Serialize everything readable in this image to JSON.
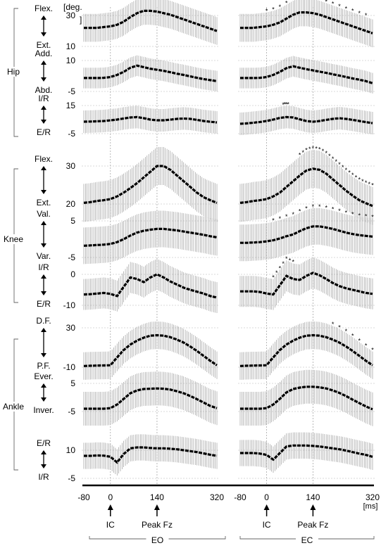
{
  "groups": [
    {
      "label": "Hip"
    },
    {
      "label": "Knee"
    },
    {
      "label": "Ankle"
    }
  ],
  "unit_label": "[deg.",
  "unit_bracket": "]",
  "x_unit_label": "[ms]",
  "x_ticks": [
    "-80",
    "0",
    "140",
    "320"
  ],
  "events": [
    "IC",
    "Peak Fz"
  ],
  "conditions": [
    "EO",
    "EC"
  ],
  "rows": [
    {
      "group": "Hip",
      "top_label": "Flex.",
      "bottom_label": "Ext.",
      "y_ticks": [
        "30",
        "10"
      ]
    },
    {
      "group": "Hip",
      "top_label": "Add.",
      "bottom_label": "Abd.",
      "y_ticks": [
        "10",
        "-5"
      ]
    },
    {
      "group": "Hip",
      "top_label": "I/R",
      "bottom_label": "E/R",
      "y_ticks": [
        "15",
        "-5"
      ]
    },
    {
      "group": "Knee",
      "top_label": "Flex.",
      "bottom_label": "Ext.",
      "y_ticks": [
        "30",
        "20"
      ]
    },
    {
      "group": "Knee",
      "top_label": "Val.",
      "bottom_label": "Var.",
      "y_ticks": [
        "5",
        "-5"
      ]
    },
    {
      "group": "Knee",
      "top_label": "I/R",
      "bottom_label": "E/R",
      "y_ticks": [
        "0",
        "-10"
      ]
    },
    {
      "group": "Ankle",
      "top_label": "D.F.",
      "bottom_label": "P.F.",
      "y_ticks": [
        "30",
        "-10"
      ]
    },
    {
      "group": "Ankle",
      "top_label": "Ever.",
      "bottom_label": "Inver.",
      "y_ticks": [
        "5",
        "-5"
      ]
    },
    {
      "group": "Ankle",
      "top_label": "E/R",
      "bottom_label": "I/R",
      "y_ticks": [
        "10",
        "-5"
      ]
    }
  ],
  "chart_data": {
    "type": "line",
    "x_range": [
      -80,
      320
    ],
    "x": [
      -80,
      -60,
      -40,
      -20,
      0,
      20,
      40,
      60,
      80,
      100,
      120,
      140,
      160,
      180,
      200,
      220,
      240,
      260,
      280,
      300,
      320
    ],
    "panels": [
      {
        "row": 0,
        "condition": "EO",
        "y_range": [
          10,
          30
        ],
        "mean": [
          22,
          22,
          22,
          22.5,
          23,
          24,
          26,
          29,
          31.5,
          33,
          33,
          32.5,
          31.5,
          30.5,
          29,
          27.5,
          26,
          24.5,
          23,
          21.5,
          20
        ],
        "sd": 9
      },
      {
        "row": 0,
        "condition": "EC",
        "y_range": [
          10,
          30
        ],
        "mean": [
          22,
          22,
          22,
          22.5,
          23,
          24,
          25.5,
          28,
          30.5,
          32,
          32,
          31.5,
          30.5,
          29,
          27.5,
          26,
          24.5,
          23,
          21.5,
          20,
          18.5
        ],
        "sd": 9,
        "significant_x": [
          0,
          20,
          40,
          60,
          80,
          100,
          120,
          140,
          160,
          180,
          200,
          220,
          240,
          260,
          280,
          300
        ]
      },
      {
        "row": 1,
        "condition": "EO",
        "y_range": [
          -5,
          10
        ],
        "mean": [
          1.5,
          1.5,
          1.5,
          1.6,
          2,
          3,
          4.5,
          6.5,
          7.5,
          6.8,
          6,
          5.5,
          5,
          4.3,
          3.6,
          3,
          2.3,
          1.6,
          1,
          0.5,
          0
        ],
        "sd": 5
      },
      {
        "row": 1,
        "condition": "EC",
        "y_range": [
          -5,
          10
        ],
        "mean": [
          1.5,
          1.5,
          1.5,
          1.6,
          2,
          3,
          4.5,
          6.3,
          7.2,
          6.5,
          5.8,
          5.2,
          4.6,
          4,
          3.3,
          2.7,
          2,
          1.3,
          0.7,
          0,
          -1
        ],
        "sd": 5
      },
      {
        "row": 2,
        "condition": "EO",
        "y_range": [
          -5,
          15
        ],
        "mean": [
          3.5,
          3.6,
          3.8,
          4,
          4.5,
          5,
          5.8,
          6.5,
          6.8,
          6,
          5,
          4.5,
          4.5,
          5,
          5.5,
          5.8,
          5.5,
          4.8,
          4,
          3.5,
          3
        ],
        "sd": 8
      },
      {
        "row": 2,
        "condition": "EC",
        "y_range": [
          -5,
          15
        ],
        "mean": [
          2,
          2.3,
          2.8,
          3.3,
          4,
          5,
          6.2,
          6.8,
          6.5,
          5.2,
          4,
          3.5,
          4,
          4.8,
          5.5,
          6,
          5.5,
          4.8,
          4,
          3.2,
          2.5
        ],
        "sd": 8,
        "significant_x": [
          50,
          55,
          60,
          65
        ]
      },
      {
        "row": 3,
        "condition": "EO",
        "y_range": [
          20,
          30
        ],
        "mean": [
          20.3,
          20.5,
          20.8,
          21,
          21.3,
          22,
          23,
          24.2,
          25.5,
          27,
          28.5,
          30,
          30,
          29,
          27.5,
          26,
          24.5,
          23,
          21.8,
          21,
          20.3
        ],
        "sd": 5
      },
      {
        "row": 3,
        "condition": "EC",
        "y_range": [
          20,
          30
        ],
        "mean": [
          20.3,
          20.5,
          20.8,
          21,
          21.3,
          22,
          23,
          24.5,
          26,
          27.5,
          28.8,
          29.3,
          29,
          28,
          26.5,
          25,
          23.5,
          22.2,
          21,
          20.2,
          19.5
        ],
        "sd": 5,
        "significant_x": [
          100,
          110,
          120,
          130,
          140,
          150,
          160,
          170,
          180,
          190,
          200,
          210,
          220,
          230,
          240,
          250,
          260,
          270,
          280,
          290,
          300,
          310,
          320
        ]
      },
      {
        "row": 4,
        "condition": "EO",
        "y_range": [
          -5,
          5
        ],
        "mean": [
          -1.8,
          -1.7,
          -1.6,
          -1.5,
          -1.3,
          -0.8,
          0,
          1,
          1.8,
          2.3,
          2.6,
          2.8,
          2.8,
          2.6,
          2.4,
          2.1,
          1.8,
          1.5,
          1.2,
          0.8,
          0.5
        ],
        "sd": 5
      },
      {
        "row": 4,
        "condition": "EC",
        "y_range": [
          -5,
          5
        ],
        "mean": [
          -1,
          -1,
          -0.9,
          -0.8,
          -0.6,
          -0.3,
          0.2,
          0.8,
          1.3,
          2.2,
          3,
          3.5,
          3.5,
          3.2,
          2.8,
          2.3,
          1.8,
          1.4,
          1.1,
          0.9,
          0.7
        ],
        "sd": 5,
        "significant_x": [
          20,
          40,
          60,
          80,
          100,
          120,
          140,
          160,
          180,
          200,
          220,
          240,
          260,
          280,
          300,
          320
        ]
      },
      {
        "row": 5,
        "condition": "EO",
        "y_range": [
          -10,
          0
        ],
        "mean": [
          -6.5,
          -6.4,
          -6.2,
          -6,
          -6.3,
          -7,
          -4,
          -1,
          -1.5,
          -2.5,
          -1,
          0,
          -1,
          -2.3,
          -3.3,
          -4.3,
          -5,
          -5.6,
          -6.2,
          -7,
          -7.5
        ],
        "sd": 5
      },
      {
        "row": 5,
        "condition": "EC",
        "y_range": [
          -10,
          0
        ],
        "mean": [
          -5.5,
          -5.5,
          -5.5,
          -5.7,
          -6.2,
          -6.5,
          -3.5,
          -0.5,
          -1.5,
          -1.8,
          -0.5,
          0.5,
          -0.3,
          -1.5,
          -2.8,
          -3.8,
          -4.5,
          -5,
          -5.5,
          -6,
          -6.3
        ],
        "sd": 5,
        "significant_x": [
          20,
          30,
          40,
          50,
          60,
          70,
          80
        ]
      },
      {
        "row": 6,
        "condition": "EO",
        "y_range": [
          -10,
          30
        ],
        "mean": [
          -8.8,
          -8.5,
          -8.3,
          -8.2,
          -8,
          0,
          7.5,
          13,
          17,
          20,
          22,
          22.5,
          22,
          20.5,
          18,
          15,
          11,
          6.5,
          1.5,
          -3.5,
          -8
        ],
        "sd": 14
      },
      {
        "row": 6,
        "condition": "EC",
        "y_range": [
          -10,
          30
        ],
        "mean": [
          -8.8,
          -8.5,
          -8.3,
          -8.2,
          -8,
          0,
          7.5,
          13,
          17,
          20,
          22,
          22.5,
          22,
          20.5,
          18,
          15,
          11,
          6.5,
          1.5,
          -3.5,
          -8
        ],
        "sd": 14,
        "significant_x": [
          200,
          220,
          240,
          260,
          280,
          300,
          320
        ]
      },
      {
        "row": 7,
        "condition": "EO",
        "y_range": [
          -5,
          5
        ],
        "mean": [
          -4,
          -4,
          -4,
          -4,
          -3.8,
          -2.5,
          -0.5,
          1.5,
          2.5,
          3,
          3.1,
          3.2,
          3.1,
          2.8,
          2.2,
          1.5,
          0.5,
          -0.6,
          -1.8,
          -3,
          -3.8
        ],
        "sd": 6
      },
      {
        "row": 7,
        "condition": "EC",
        "y_range": [
          -5,
          5
        ],
        "mean": [
          -4,
          -4,
          -4,
          -4,
          -3.8,
          -2.5,
          -0.5,
          1.8,
          3,
          3.5,
          3.8,
          3.8,
          3.6,
          3.2,
          2.5,
          1.6,
          0.5,
          -0.8,
          -2,
          -3.2,
          -4.2
        ],
        "sd": 6
      },
      {
        "row": 8,
        "condition": "EO",
        "y_range": [
          -5,
          10
        ],
        "mean": [
          7,
          7,
          7.2,
          7.1,
          6.5,
          3.5,
          8,
          11,
          11.5,
          11.5,
          11.2,
          11,
          11,
          10.8,
          10.5,
          10,
          9.5,
          9,
          8.3,
          7.6,
          7
        ],
        "sd": 7
      },
      {
        "row": 8,
        "condition": "EC",
        "y_range": [
          -5,
          10
        ],
        "mean": [
          8.5,
          8.5,
          8.5,
          8.2,
          7.5,
          5,
          8.5,
          12,
          12.5,
          12.5,
          12.5,
          12.3,
          12,
          11.5,
          11,
          10.5,
          9.8,
          9,
          8.2,
          7.5,
          6.5
        ],
        "sd": 7
      }
    ]
  }
}
